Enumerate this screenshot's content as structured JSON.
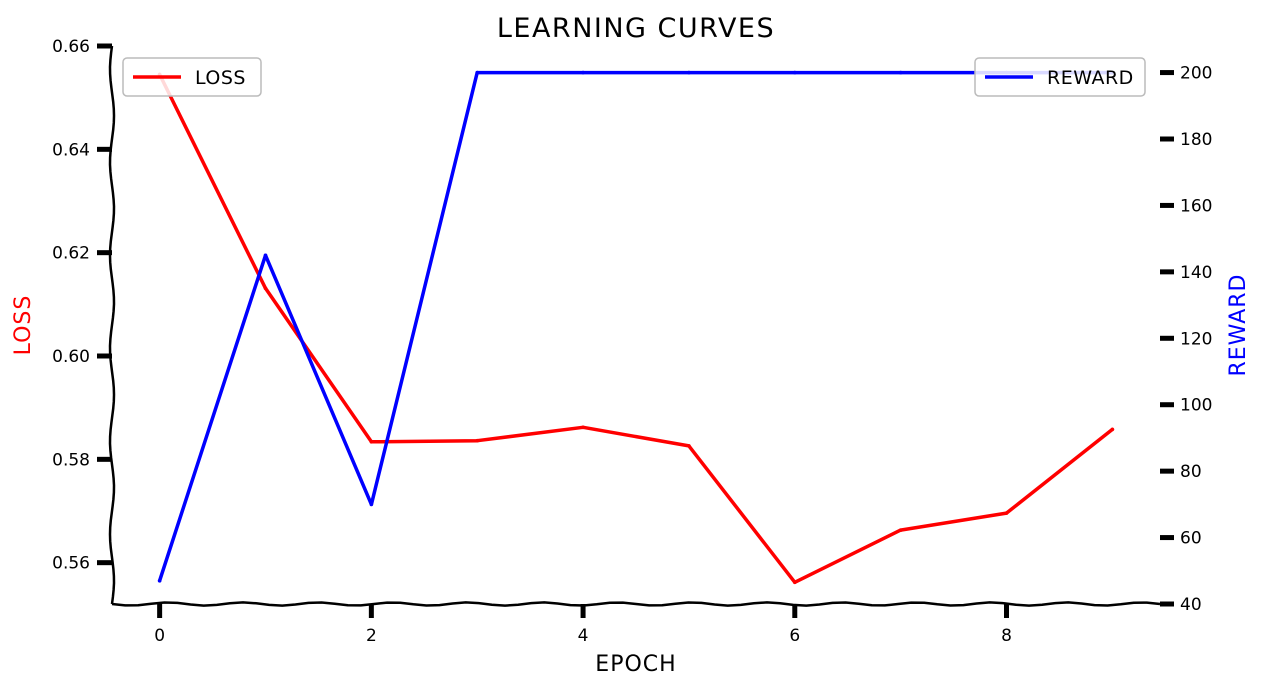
{
  "chart_data": {
    "type": "line",
    "title": "LEARNING CURVES",
    "xlabel": "EPOCH",
    "x_ticks": [
      "0",
      "2",
      "4",
      "6",
      "8"
    ],
    "xlim": [
      -0.45,
      9.45
    ],
    "x": [
      0,
      1,
      2,
      3,
      4,
      5,
      6,
      7,
      8,
      9
    ],
    "left_axis": {
      "label": "LOSS",
      "color": "#ff0000",
      "ylim": [
        0.552,
        0.66
      ],
      "ticks": [
        "0.56",
        "0.58",
        "0.60",
        "0.62",
        "0.64",
        "0.66"
      ]
    },
    "right_axis": {
      "label": "REWARD",
      "color": "#0000ff",
      "ylim": [
        40,
        208
      ],
      "ticks": [
        "40",
        "60",
        "80",
        "100",
        "120",
        "140",
        "160",
        "180",
        "200"
      ]
    },
    "series": [
      {
        "name": "LOSS",
        "axis": "left",
        "color": "#ff0000",
        "values": [
          0.6545,
          0.6131,
          0.5834,
          0.5836,
          0.5862,
          0.5826,
          0.5562,
          0.5663,
          0.5696,
          0.5858
        ]
      },
      {
        "name": "REWARD",
        "axis": "right",
        "color": "#0000ff",
        "values": [
          47,
          145,
          70,
          200,
          200,
          200,
          200,
          200,
          200,
          200
        ]
      }
    ],
    "legends": [
      {
        "label": "LOSS",
        "color": "#ff0000",
        "placement": "top-left"
      },
      {
        "label": "REWARD",
        "color": "#0000ff",
        "placement": "top-right"
      }
    ],
    "grid": false
  }
}
